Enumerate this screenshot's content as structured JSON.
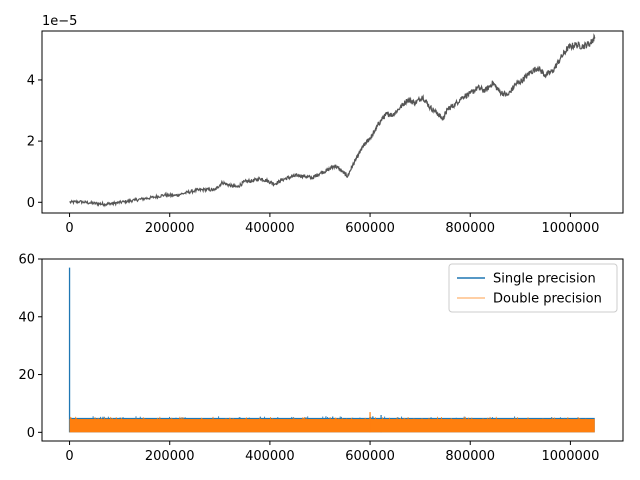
{
  "chart_data": [
    {
      "type": "line",
      "title": "",
      "xlabel": "",
      "ylabel": "",
      "offset_label": "1e−5",
      "xlim": [
        -55000,
        1105000
      ],
      "ylim": [
        -0.35,
        5.6
      ],
      "x_ticks": [
        0,
        200000,
        400000,
        600000,
        800000,
        1000000
      ],
      "x_tick_labels": [
        "0",
        "200000",
        "400000",
        "600000",
        "800000",
        "1000000"
      ],
      "y_ticks": [
        0,
        2,
        4
      ],
      "y_tick_labels": [
        "0",
        "2",
        "4"
      ],
      "grid": false,
      "series": [
        {
          "color": "#555555",
          "x": [
            0,
            20000,
            40000,
            60000,
            75000,
            90000,
            110000,
            130000,
            150000,
            170000,
            190000,
            210000,
            230000,
            250000,
            270000,
            290000,
            305000,
            320000,
            335000,
            350000,
            365000,
            380000,
            395000,
            410000,
            425000,
            440000,
            455000,
            470000,
            485000,
            500000,
            515000,
            530000,
            545000,
            555000,
            565000,
            575000,
            585000,
            595000,
            605000,
            615000,
            625000,
            635000,
            645000,
            660000,
            675000,
            690000,
            705000,
            720000,
            735000,
            745000,
            755000,
            770000,
            785000,
            800000,
            815000,
            830000,
            845000,
            860000,
            875000,
            890000,
            905000,
            920000,
            935000,
            950000,
            965000,
            980000,
            995000,
            1010000,
            1025000,
            1040000,
            1048576
          ],
          "values": [
            0.0,
            0.02,
            -0.02,
            -0.05,
            -0.06,
            -0.03,
            0.02,
            0.07,
            0.12,
            0.17,
            0.24,
            0.22,
            0.3,
            0.38,
            0.42,
            0.4,
            0.65,
            0.55,
            0.5,
            0.68,
            0.7,
            0.78,
            0.7,
            0.6,
            0.74,
            0.82,
            0.88,
            0.85,
            0.8,
            0.95,
            1.05,
            1.2,
            1.0,
            0.85,
            1.2,
            1.5,
            1.8,
            2.0,
            2.2,
            2.5,
            2.75,
            2.9,
            2.85,
            3.1,
            3.35,
            3.25,
            3.45,
            3.1,
            2.9,
            2.72,
            3.05,
            3.2,
            3.45,
            3.55,
            3.75,
            3.65,
            3.9,
            3.6,
            3.5,
            3.85,
            4.0,
            4.25,
            4.4,
            4.15,
            4.3,
            4.7,
            5.05,
            5.15,
            5.1,
            5.2,
            5.4
          ]
        }
      ]
    },
    {
      "type": "line",
      "title": "",
      "xlabel": "",
      "ylabel": "",
      "xlim": [
        -55000,
        1105000
      ],
      "ylim": [
        -3,
        60
      ],
      "x_ticks": [
        0,
        200000,
        400000,
        600000,
        800000,
        1000000
      ],
      "x_tick_labels": [
        "0",
        "200000",
        "400000",
        "600000",
        "800000",
        "1000000"
      ],
      "y_ticks": [
        0,
        20,
        40,
        60
      ],
      "y_tick_labels": [
        "0",
        "20",
        "40",
        "60"
      ],
      "grid": false,
      "legend_position": "top-right",
      "series": [
        {
          "name": "Single precision",
          "color": "#1f77b4",
          "initial_spike": 57,
          "typical_range": [
            0,
            5
          ],
          "peak_values": [
            {
              "x": 622000,
              "y": 6
            }
          ]
        },
        {
          "name": "Double precision",
          "color": "#ff7f0e",
          "typical_range": [
            0,
            5
          ],
          "peak_values": [
            {
              "x": 600000,
              "y": 7
            }
          ]
        }
      ]
    }
  ]
}
